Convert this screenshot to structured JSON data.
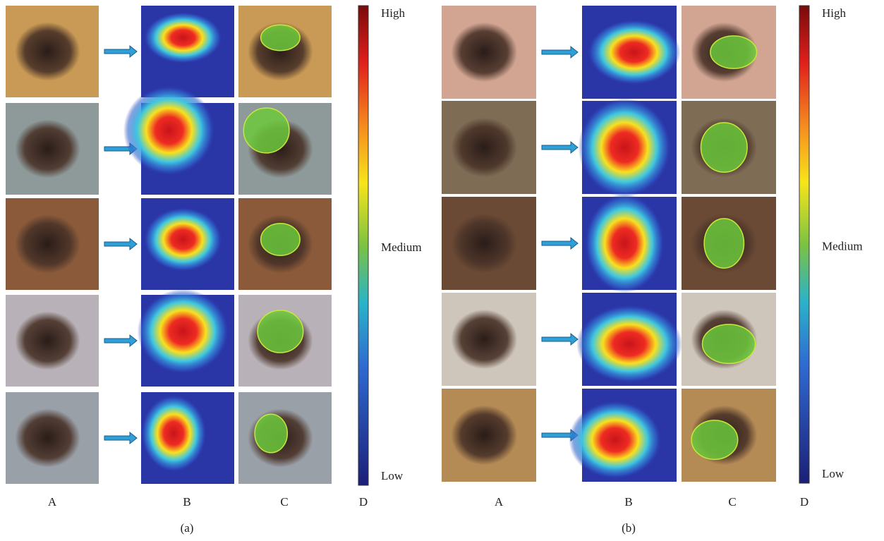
{
  "panels": [
    {
      "caption": "(a)",
      "columns": [
        "A",
        "B",
        "C",
        "D"
      ],
      "colorbar": {
        "high": "High",
        "medium": "Medium",
        "low": "Low"
      }
    },
    {
      "caption": "(b)",
      "columns": [
        "A",
        "B",
        "C",
        "D"
      ],
      "colorbar": {
        "high": "High",
        "medium": "Medium",
        "low": "Low"
      }
    }
  ]
}
